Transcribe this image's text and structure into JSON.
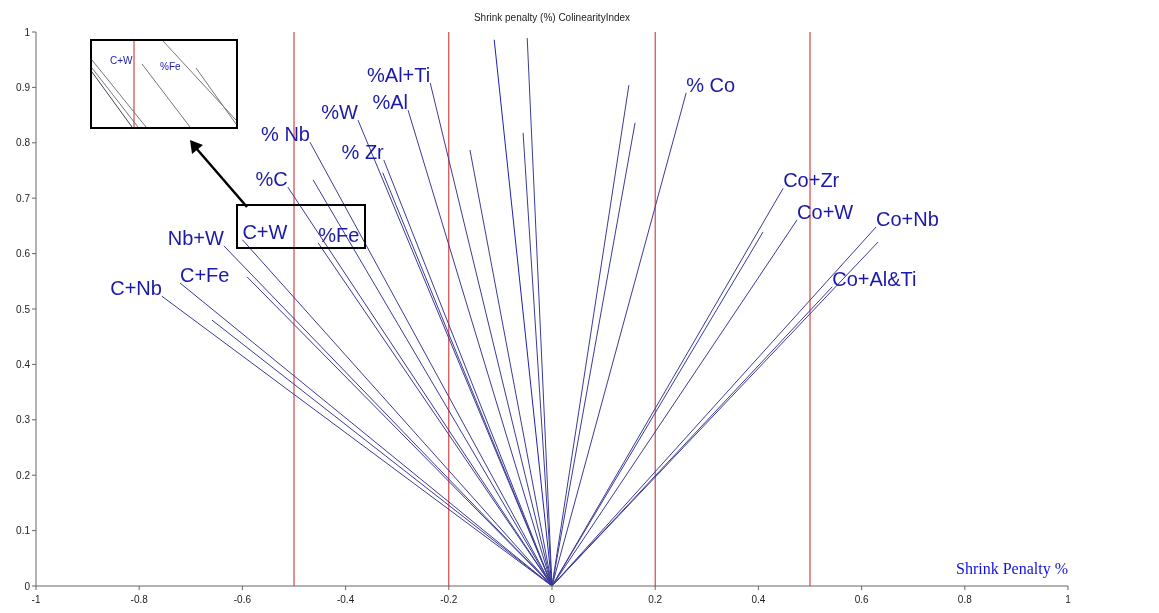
{
  "chart_data": {
    "type": "line",
    "title": "Shrink penalty (%) ColinearityIndex",
    "xlabel": "Shrink Penalty %",
    "xlim": [
      -1,
      1
    ],
    "xticks": [
      -1,
      -0.8,
      -0.6,
      -0.4,
      -0.2,
      0,
      0.2,
      0.4,
      0.6,
      0.8,
      1
    ],
    "ylim": [
      0,
      1
    ],
    "yticks": [
      0,
      0.1,
      0.2,
      0.3,
      0.4,
      0.5,
      0.6,
      0.7,
      0.8,
      0.9,
      1
    ],
    "grid": false,
    "marker": "none",
    "line_style": "solid",
    "ref_lines": [
      {
        "axis": "x",
        "value": -0.5,
        "color": "#cc2222"
      },
      {
        "axis": "x",
        "value": -0.2,
        "color": "#cc2222"
      },
      {
        "axis": "x",
        "value": 0.2,
        "color": "#cc2222"
      },
      {
        "axis": "x",
        "value": 0.5,
        "color": "#cc2222"
      }
    ],
    "series": [
      {
        "color": "#3b3b96",
        "x": [
          0,
          -0.756
        ],
        "values": [
          0,
          0.523
        ]
      },
      {
        "color": "#3b3b96",
        "x": [
          0,
          -0.721
        ],
        "values": [
          0,
          0.547
        ]
      },
      {
        "color": "#3b3b96",
        "x": [
          0,
          -0.636
        ],
        "values": [
          0,
          0.614
        ]
      },
      {
        "color": "#3b3b96",
        "x": [
          0,
          -0.6
        ],
        "values": [
          0,
          0.625
        ]
      },
      {
        "color": "#3b3b96",
        "x": [
          0,
          -0.453
        ],
        "values": [
          0,
          0.619
        ]
      },
      {
        "color": "#3b3b96",
        "x": [
          0,
          -0.512
        ],
        "values": [
          0,
          0.72
        ]
      },
      {
        "color": "#3b3b96",
        "x": [
          0,
          -0.469
        ],
        "values": [
          0,
          0.801
        ]
      },
      {
        "color": "#3b3b96",
        "x": [
          0,
          -0.376
        ],
        "values": [
          0,
          0.841
        ]
      },
      {
        "color": "#3b3b96",
        "x": [
          0,
          -0.326
        ],
        "values": [
          0,
          0.769
        ]
      },
      {
        "color": "#3b3b96",
        "x": [
          0,
          -0.279
        ],
        "values": [
          0,
          0.859
        ]
      },
      {
        "color": "#3b3b96",
        "x": [
          0,
          -0.236
        ],
        "values": [
          0,
          0.908
        ]
      },
      {
        "color": "#3b3b96",
        "x": [
          0,
          0.26
        ],
        "values": [
          0,
          0.89
        ]
      },
      {
        "color": "#3b3b96",
        "x": [
          0,
          0.448
        ],
        "values": [
          0,
          0.718
        ]
      },
      {
        "color": "#3b3b96",
        "x": [
          0,
          0.475
        ],
        "values": [
          0,
          0.661
        ]
      },
      {
        "color": "#3b3b96",
        "x": [
          0,
          0.628
        ],
        "values": [
          0,
          0.648
        ]
      },
      {
        "color": "#3b3b96",
        "x": [
          0,
          0.543
        ],
        "values": [
          0,
          0.54
        ]
      },
      {
        "color": "#3b3b96",
        "x": [
          0,
          0.632
        ],
        "values": [
          0,
          0.621
        ]
      },
      {
        "color": "#2020b0",
        "x": [
          0,
          -0.112
        ],
        "values": [
          0,
          0.986
        ]
      },
      {
        "color": "#3b3b96",
        "x": [
          0,
          -0.048
        ],
        "values": [
          0,
          0.989
        ]
      },
      {
        "color": "#3b3b96",
        "x": [
          0,
          -0.159
        ],
        "values": [
          0,
          0.787
        ]
      },
      {
        "color": "#3b3b96",
        "x": [
          0,
          -0.056
        ],
        "values": [
          0,
          0.818
        ]
      },
      {
        "color": "#3b3b96",
        "x": [
          0,
          0.149
        ],
        "values": [
          0,
          0.904
        ]
      },
      {
        "color": "#3b3b96",
        "x": [
          0,
          0.161
        ],
        "values": [
          0,
          0.836
        ]
      },
      {
        "color": "#3b3b96",
        "x": [
          0,
          0.409
        ],
        "values": [
          0,
          0.639
        ]
      },
      {
        "color": "#3b3b96",
        "x": [
          0,
          -0.659
        ],
        "values": [
          0,
          0.48
        ]
      },
      {
        "color": "#3b3b96",
        "x": [
          0,
          -0.591
        ],
        "values": [
          0,
          0.558
        ]
      },
      {
        "color": "#3b3b96",
        "x": [
          0,
          -0.463
        ],
        "values": [
          0,
          0.733
        ]
      },
      {
        "color": "#3b3b96",
        "x": [
          0,
          -0.328
        ],
        "values": [
          0,
          0.746
        ]
      }
    ],
    "annotations": [
      {
        "text": "C+Nb",
        "x": -0.756,
        "y": 0.523
      },
      {
        "text": "C+Fe",
        "x": -0.721,
        "y": 0.547
      },
      {
        "text": "Nb+W",
        "x": -0.636,
        "y": 0.614
      },
      {
        "text": "C+W",
        "x": -0.6,
        "y": 0.625
      },
      {
        "text": "%Fe",
        "x": -0.453,
        "y": 0.619
      },
      {
        "text": "%C",
        "x": -0.512,
        "y": 0.72
      },
      {
        "text": "% Nb",
        "x": -0.469,
        "y": 0.801
      },
      {
        "text": "%W",
        "x": -0.376,
        "y": 0.841
      },
      {
        "text": "% Zr",
        "x": -0.326,
        "y": 0.769
      },
      {
        "text": "%Al",
        "x": -0.279,
        "y": 0.859
      },
      {
        "text": "%Al+Ti",
        "x": -0.236,
        "y": 0.908
      },
      {
        "text": "% Co",
        "x": 0.26,
        "y": 0.89
      },
      {
        "text": "Co+Zr",
        "x": 0.448,
        "y": 0.718
      },
      {
        "text": "Co+W",
        "x": 0.475,
        "y": 0.661
      },
      {
        "text": "Co+Nb",
        "x": 0.628,
        "y": 0.648
      },
      {
        "text": "Co+Al&Ti",
        "x": 0.543,
        "y": 0.54
      },
      "C+W",
      "%Fe"
    ]
  }
}
